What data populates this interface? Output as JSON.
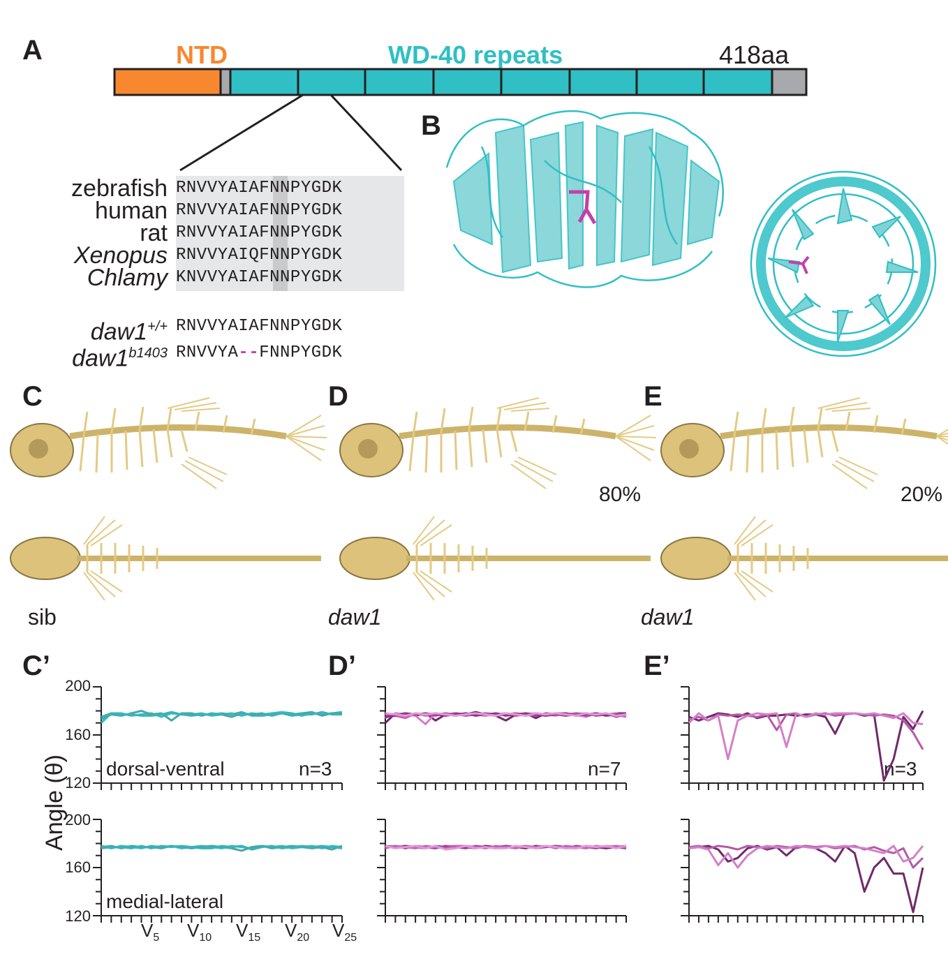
{
  "panels": {
    "A": "A",
    "B": "B",
    "C": "C",
    "D": "D",
    "E": "E",
    "Cp": "C’",
    "Dp": "D’",
    "Ep": "E’"
  },
  "domain_bar": {
    "ntd_label": "NTD",
    "wd40_label": "WD-40 repeats",
    "length_label": "418aa",
    "colors": {
      "ntd": "#f7882f",
      "wd40": "#2fbfc4",
      "linker": "#a7a9ac",
      "outline": "#231f20"
    }
  },
  "alignment": {
    "rows": [
      {
        "species": "zebrafish",
        "italic": false,
        "seq": "RNVVYAIAFNNPYGDK"
      },
      {
        "species": "human",
        "italic": false,
        "seq": "RNVVYAIAFNNPYGDK"
      },
      {
        "species": "rat",
        "italic": false,
        "seq": "RNVVYAIAFNNPYGDK"
      },
      {
        "species": "Xenopus",
        "italic": true,
        "seq": "RNVVYAIQFNNPYGDK"
      },
      {
        "species": "Chlamy",
        "italic": true,
        "seq": "KNVVYAIAFNNPYGDK"
      }
    ],
    "mutant": {
      "wt_gene": "daw1",
      "wt_sup": "+/+",
      "wt_seq": "RNVVYAIAFNNPYGDK",
      "mut_gene": "daw1",
      "mut_sup": "b1403",
      "mut_seq_a": "RNVVYA",
      "mut_gap": "--",
      "mut_seq_b": "FNNPYGDK"
    }
  },
  "skeleton_panels": {
    "C_label": "sib",
    "D_label": "daw1",
    "E_label": "daw1",
    "D_pct": "80%",
    "E_pct": "20%"
  },
  "y_axis_title": "Angle (θ)",
  "x_tick_labels": [
    {
      "main": "V",
      "sub": "5"
    },
    {
      "main": "V",
      "sub": "10"
    },
    {
      "main": "V",
      "sub": "15"
    },
    {
      "main": "V",
      "sub": "20"
    },
    {
      "main": "V",
      "sub": "25"
    }
  ],
  "row_labels": {
    "top": "dorsal-ventral",
    "bottom": "medial-lateral"
  },
  "y_ticks": [
    "200",
    "160",
    "120"
  ],
  "chart_data": [
    {
      "type": "line",
      "panel": "C’",
      "row": "dorsal-ventral",
      "n": "n=3",
      "ylim": [
        120,
        200
      ],
      "x": [
        1,
        2,
        3,
        4,
        5,
        6,
        7,
        8,
        9,
        10,
        11,
        12,
        13,
        14,
        15,
        16,
        17,
        18,
        19,
        20,
        21,
        22,
        23,
        24,
        25
      ],
      "series": [
        {
          "color": "#2fbfc4",
          "values": [
            170,
            178,
            178,
            176,
            177,
            178,
            175,
            178,
            177,
            177,
            178,
            176,
            177,
            178,
            176,
            178,
            177,
            178,
            179,
            178,
            176,
            178,
            177,
            178,
            179
          ]
        },
        {
          "color": "#47a6a8",
          "values": [
            173,
            177,
            176,
            178,
            180,
            177,
            178,
            172,
            178,
            178,
            176,
            178,
            177,
            175,
            178,
            177,
            178,
            176,
            178,
            177,
            178,
            179,
            176,
            178,
            178
          ]
        },
        {
          "color": "#38b3b7",
          "values": [
            175,
            178,
            177,
            177,
            176,
            176,
            177,
            179,
            177,
            176,
            177,
            177,
            178,
            177,
            179,
            176,
            176,
            177,
            178,
            176,
            177,
            177,
            179,
            177,
            177
          ]
        }
      ]
    },
    {
      "type": "line",
      "panel": "D’",
      "row": "dorsal-ventral",
      "n": "n=7",
      "ylim": [
        120,
        200
      ],
      "x": [
        1,
        2,
        3,
        4,
        5,
        6,
        7,
        8,
        9,
        10,
        11,
        12,
        13,
        14,
        15,
        16,
        17,
        18,
        19,
        20,
        21,
        22,
        23,
        24,
        25
      ],
      "series": [
        {
          "color": "#6e2a6a",
          "values": [
            170,
            178,
            177,
            176,
            178,
            172,
            177,
            178,
            177,
            179,
            177,
            176,
            172,
            177,
            178,
            174,
            178,
            177,
            176,
            178,
            177,
            178,
            177,
            178,
            178
          ]
        },
        {
          "color": "#a33a9c",
          "values": [
            176,
            177,
            178,
            177,
            177,
            178,
            176,
            178,
            176,
            177,
            178,
            177,
            178,
            176,
            177,
            178,
            177,
            178,
            176,
            177,
            178,
            176,
            177,
            176,
            177
          ]
        },
        {
          "color": "#c761b9",
          "values": [
            178,
            176,
            174,
            178,
            176,
            177,
            178,
            176,
            178,
            177,
            176,
            178,
            177,
            178,
            176,
            177,
            176,
            178,
            178,
            176,
            177,
            178,
            176,
            177,
            175
          ]
        },
        {
          "color": "#d67cc8",
          "values": [
            174,
            178,
            177,
            176,
            169,
            178,
            177,
            176,
            177,
            178,
            176,
            177,
            178,
            177,
            176,
            178,
            177,
            176,
            178,
            177,
            175,
            178,
            177,
            178,
            176
          ]
        },
        {
          "color": "#b74fae",
          "values": [
            177,
            177,
            176,
            178,
            177,
            176,
            178,
            177,
            176,
            177,
            178,
            176,
            177,
            178,
            177,
            176,
            178,
            177,
            177,
            178,
            176,
            177,
            178,
            175,
            177
          ]
        },
        {
          "color": "#8e3486",
          "values": [
            175,
            176,
            178,
            177,
            178,
            177,
            176,
            177,
            178,
            176,
            177,
            178,
            176,
            177,
            178,
            177,
            176,
            177,
            178,
            176,
            177,
            178,
            176,
            177,
            178
          ]
        },
        {
          "color": "#e29ad6",
          "values": [
            178,
            177,
            176,
            178,
            177,
            178,
            177,
            176,
            177,
            178,
            177,
            176,
            178,
            177,
            176,
            178,
            177,
            178,
            177,
            176,
            178,
            177,
            178,
            176,
            177
          ]
        }
      ]
    },
    {
      "type": "line",
      "panel": "E’",
      "row": "dorsal-ventral",
      "n": "n=3",
      "ylim": [
        120,
        200
      ],
      "x": [
        1,
        2,
        3,
        4,
        5,
        6,
        7,
        8,
        9,
        10,
        11,
        12,
        13,
        14,
        15,
        16,
        17,
        18,
        19,
        20,
        21,
        22,
        23,
        24,
        25
      ],
      "series": [
        {
          "color": "#6e2a6a",
          "values": [
            175,
            172,
            175,
            178,
            177,
            175,
            178,
            174,
            176,
            176,
            177,
            176,
            177,
            177,
            175,
            161,
            178,
            178,
            176,
            177,
            122,
            140,
            175,
            165,
            180
          ]
        },
        {
          "color": "#b45aa7",
          "values": [
            173,
            175,
            172,
            177,
            176,
            177,
            176,
            175,
            177,
            164,
            177,
            178,
            175,
            177,
            178,
            176,
            177,
            178,
            177,
            176,
            177,
            176,
            172,
            162,
            148
          ]
        },
        {
          "color": "#d47fc8",
          "values": [
            170,
            178,
            172,
            176,
            140,
            172,
            176,
            178,
            177,
            178,
            150,
            178,
            175,
            178,
            177,
            178,
            178,
            178,
            177,
            178,
            176,
            174,
            178,
            170,
            169
          ]
        }
      ]
    },
    {
      "type": "line",
      "panel": "C’",
      "row": "medial-lateral",
      "ylim": [
        120,
        200
      ],
      "x": [
        1,
        2,
        3,
        4,
        5,
        6,
        7,
        8,
        9,
        10,
        11,
        12,
        13,
        14,
        15,
        16,
        17,
        18,
        19,
        20,
        21,
        22,
        23,
        24,
        25
      ],
      "series": [
        {
          "color": "#2fbfc4",
          "values": [
            178,
            176,
            178,
            177,
            176,
            178,
            177,
            178,
            176,
            177,
            178,
            177,
            176,
            178,
            177,
            176,
            178,
            177,
            178,
            176,
            177,
            178,
            176,
            178,
            177
          ]
        },
        {
          "color": "#47a6a8",
          "values": [
            177,
            178,
            176,
            178,
            177,
            177,
            176,
            178,
            177,
            176,
            177,
            178,
            177,
            176,
            174,
            177,
            178,
            176,
            177,
            178,
            177,
            176,
            177,
            175,
            178
          ]
        },
        {
          "color": "#38b3b7",
          "values": [
            176,
            177,
            177,
            176,
            178,
            176,
            178,
            177,
            178,
            177,
            176,
            176,
            178,
            177,
            178,
            175,
            177,
            178,
            176,
            177,
            178,
            177,
            178,
            177,
            176
          ]
        }
      ]
    },
    {
      "type": "line",
      "panel": "D’",
      "row": "medial-lateral",
      "ylim": [
        120,
        200
      ],
      "x": [
        1,
        2,
        3,
        4,
        5,
        6,
        7,
        8,
        9,
        10,
        11,
        12,
        13,
        14,
        15,
        16,
        17,
        18,
        19,
        20,
        21,
        22,
        23,
        24,
        25
      ],
      "series": [
        {
          "color": "#6e2a6a",
          "values": [
            178,
            177,
            178,
            177,
            176,
            178,
            177,
            178,
            177,
            176,
            178,
            177,
            178,
            177,
            176,
            178,
            177,
            178,
            177,
            176,
            178,
            177,
            176,
            177,
            178
          ]
        },
        {
          "color": "#a33a9c",
          "values": [
            177,
            178,
            176,
            178,
            177,
            176,
            178,
            177,
            176,
            178,
            177,
            176,
            178,
            177,
            178,
            176,
            177,
            178,
            176,
            178,
            177,
            176,
            178,
            177,
            176
          ]
        },
        {
          "color": "#c761b9",
          "values": [
            176,
            178,
            177,
            176,
            178,
            177,
            176,
            178,
            178,
            177,
            176,
            178,
            177,
            176,
            178,
            177,
            178,
            176,
            178,
            177,
            176,
            178,
            177,
            178,
            177
          ]
        },
        {
          "color": "#e29ad6",
          "values": [
            178,
            176,
            177,
            178,
            176,
            178,
            175,
            176,
            178,
            176,
            177,
            176,
            176,
            178,
            177,
            176,
            178,
            177,
            176,
            176,
            178,
            177,
            178,
            176,
            178
          ]
        }
      ]
    },
    {
      "type": "line",
      "panel": "E’",
      "row": "medial-lateral",
      "ylim": [
        120,
        200
      ],
      "x": [
        1,
        2,
        3,
        4,
        5,
        6,
        7,
        8,
        9,
        10,
        11,
        12,
        13,
        14,
        15,
        16,
        17,
        18,
        19,
        20,
        21,
        22,
        23,
        24,
        25
      ],
      "series": [
        {
          "color": "#6e2a6a",
          "values": [
            176,
            177,
            178,
            175,
            165,
            168,
            176,
            178,
            175,
            177,
            170,
            177,
            178,
            176,
            172,
            165,
            178,
            172,
            140,
            160,
            168,
            155,
            155,
            123,
            160
          ]
        },
        {
          "color": "#b45aa7",
          "values": [
            177,
            178,
            176,
            178,
            177,
            175,
            178,
            177,
            176,
            178,
            177,
            176,
            178,
            177,
            178,
            176,
            177,
            178,
            175,
            177,
            174,
            172,
            176,
            160,
            168
          ]
        },
        {
          "color": "#d47fc8",
          "values": [
            176,
            177,
            175,
            162,
            172,
            160,
            170,
            176,
            178,
            177,
            176,
            178,
            177,
            176,
            178,
            177,
            178,
            177,
            176,
            174,
            172,
            178,
            165,
            168,
            178
          ]
        }
      ]
    }
  ]
}
